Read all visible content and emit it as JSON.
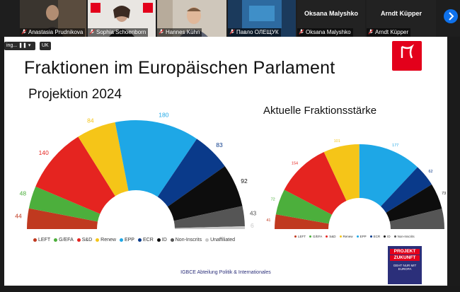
{
  "participants": [
    {
      "name": "Anastasia Prudnikova",
      "has_video": true
    },
    {
      "name": "Sophia Schoenborn",
      "has_video": true
    },
    {
      "name": "Hannes Kühn",
      "has_video": true
    },
    {
      "name": "Павло ОЛЕЩУК",
      "has_video": true
    },
    {
      "name": "Oksana Malyshko",
      "has_video": false
    },
    {
      "name": "Arndt Küpper",
      "has_video": false
    }
  ],
  "share_controls": {
    "viewing_label": "ing...",
    "language": "UK"
  },
  "slide": {
    "title": "Fraktionen im Europäischen Parlament",
    "subtitle_left": "Projektion 2024",
    "subtitle_right": "Aktuelle Fraktionsstärke",
    "logo_text": "IGBCE",
    "footer": "IGBCE Abteilung Politik & Internationales",
    "badge": {
      "line1": "PROJEKT",
      "line2": "ZUKUNFT",
      "line3": "GEHT NUR MIT EUROPA"
    }
  },
  "colors": {
    "LEFT": "#c0391f",
    "G/EFA": "#4caf3c",
    "S&D": "#e52420",
    "Renew": "#f5c518",
    "EPP": "#1ea7e6",
    "ECR": "#0a3a8a",
    "ID": "#0d0d0d",
    "Non-Inscrits": "#555555",
    "Unaffiliated": "#c8c8c8"
  },
  "chart_data": [
    {
      "type": "pie",
      "title": "Projektion 2024",
      "categories": [
        "LEFT",
        "G/EFA",
        "S&D",
        "Renew",
        "EPP",
        "ECR",
        "ID",
        "Non-Inscrits",
        "Unaffiliated"
      ],
      "values": [
        44,
        48,
        140,
        84,
        180,
        83,
        92,
        43,
        6
      ],
      "legend": [
        "LEFT",
        "G/EFA",
        "S&D",
        "Renew",
        "EPP",
        "ECR",
        "ID",
        "Non-Inscrits",
        "Unaffiliated"
      ],
      "legend_position": "bottom"
    },
    {
      "type": "pie",
      "title": "Aktuelle Fraktionsstärke",
      "categories": [
        "LEFT",
        "G/EFA",
        "S&D",
        "Renew",
        "EPP",
        "ECR",
        "ID",
        "Non-Inscrits"
      ],
      "values": [
        41,
        72,
        154,
        101,
        177,
        62,
        73,
        57
      ],
      "legend": [
        "LEFT",
        "G/EFA",
        "S&D",
        "Renew",
        "EPP",
        "ECR",
        "ID",
        "Non-Inscrits"
      ],
      "legend_position": "bottom"
    }
  ]
}
